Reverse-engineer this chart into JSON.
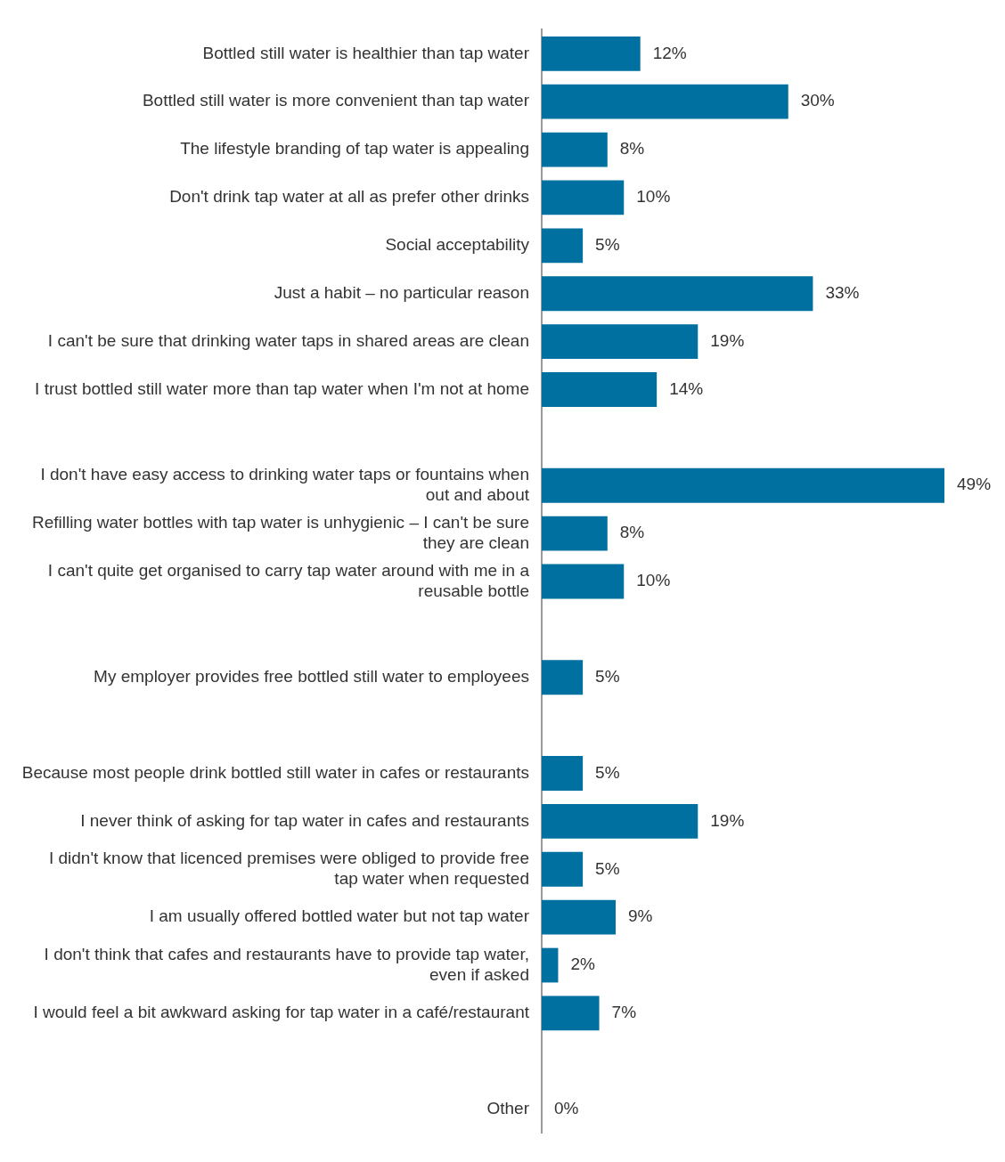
{
  "chart_data": {
    "type": "bar",
    "orientation": "horizontal",
    "categories": [
      "Bottled still water is healthier than tap water",
      "Bottled still water is more convenient than tap water",
      "The lifestyle branding of tap water is appealing",
      "Don't drink tap water at all as prefer other drinks",
      "Social acceptability",
      "Just a habit – no particular reason",
      "I can't be sure that drinking water taps in shared areas are clean",
      "I trust bottled still water more than tap water when I'm not at home",
      null,
      "I don't have easy access to drinking water taps or fountains when out and about",
      "Refilling water bottles with tap water is unhygienic – I can't be sure they are clean",
      "I can't quite get organised to carry tap water around with me in a reusable bottle",
      null,
      "My employer provides free bottled still water to employees",
      null,
      "Because most people drink bottled still water in cafes or restaurants",
      "I never think of asking for tap water in cafes and restaurants",
      "I didn't know that licenced premises were obliged to provide free tap water when requested",
      "I am usually offered bottled water but not tap water",
      "I don't think that cafes and restaurants have to provide tap water, even if asked",
      "I would feel a bit awkward asking for tap water in a café/restaurant",
      null,
      "Other"
    ],
    "values": [
      12,
      30,
      8,
      10,
      5,
      33,
      19,
      14,
      null,
      49,
      8,
      10,
      null,
      5,
      null,
      5,
      19,
      5,
      9,
      2,
      7,
      null,
      0
    ],
    "value_labels": [
      "12%",
      "30%",
      "8%",
      "10%",
      "5%",
      "33%",
      "19%",
      "14%",
      null,
      "49%",
      "8%",
      "10%",
      null,
      "5%",
      null,
      "5%",
      "19%",
      "5%",
      "9%",
      "2%",
      "7%",
      null,
      "0%"
    ],
    "color": "#0070a0",
    "legend": false,
    "tick_labels": "y"
  }
}
